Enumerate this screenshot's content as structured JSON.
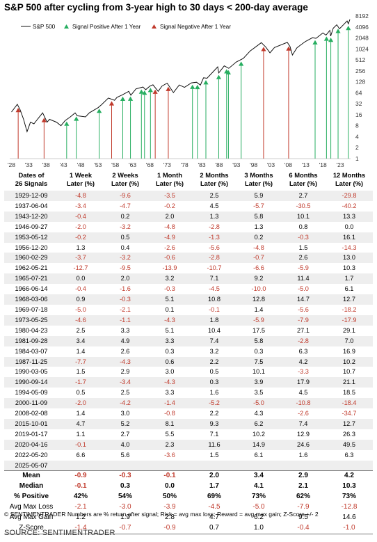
{
  "chart_data": {
    "type": "line",
    "title": "S&P 500 after cycling from 3-year high to 30 days < 200-day average",
    "x_tick_labels": [
      "'28",
      "'33",
      "'38",
      "'43",
      "'48",
      "'53",
      "'58",
      "'63",
      "'68",
      "'73",
      "'78",
      "'83",
      "'88",
      "'93",
      "'98",
      "'03",
      "'08",
      "'13",
      "'18",
      "'23"
    ],
    "x_range": [
      1927.5,
      2026
    ],
    "y_scale": "log2",
    "y_range": [
      1,
      8192
    ],
    "y_tick_labels": [
      "8192",
      "4096",
      "2048",
      "1024",
      "512",
      "256",
      "128",
      "64",
      "32",
      "16",
      "8",
      "4",
      "2",
      "1"
    ],
    "legend": [
      "S&P 500",
      "Signal Positive After 1 Year",
      "Signal Negative After 1 Year"
    ],
    "legend_position": "top-left",
    "colors": {
      "line": "#111111",
      "positive": "#27ae60",
      "negative": "#c0392b"
    },
    "series": [
      {
        "name": "S&P 500",
        "points": [
          [
            1928,
            19
          ],
          [
            1929.7,
            31
          ],
          [
            1930.5,
            22
          ],
          [
            1931.5,
            12
          ],
          [
            1932.5,
            5.5
          ],
          [
            1933.5,
            10
          ],
          [
            1934.5,
            9
          ],
          [
            1935.5,
            12
          ],
          [
            1937,
            18
          ],
          [
            1938.3,
            10
          ],
          [
            1939,
            12
          ],
          [
            1941,
            10
          ],
          [
            1942.3,
            8
          ],
          [
            1943.5,
            11
          ],
          [
            1945,
            14
          ],
          [
            1946.4,
            18
          ],
          [
            1947,
            15
          ],
          [
            1949.4,
            14
          ],
          [
            1950.5,
            18
          ],
          [
            1953,
            25
          ],
          [
            1954,
            30
          ],
          [
            1956,
            46
          ],
          [
            1957.8,
            40
          ],
          [
            1958.5,
            48
          ],
          [
            1960,
            56
          ],
          [
            1961.9,
            70
          ],
          [
            1962.5,
            55
          ],
          [
            1964,
            82
          ],
          [
            1966,
            92
          ],
          [
            1966.8,
            78
          ],
          [
            1968,
            98
          ],
          [
            1968.9,
            106
          ],
          [
            1970.4,
            70
          ],
          [
            1971.5,
            98
          ],
          [
            1973,
            118
          ],
          [
            1974.8,
            65
          ],
          [
            1976.5,
            105
          ],
          [
            1978,
            90
          ],
          [
            1980,
            120
          ],
          [
            1981.5,
            125
          ],
          [
            1982.6,
            104
          ],
          [
            1983.5,
            165
          ],
          [
            1984.5,
            160
          ],
          [
            1987.6,
            330
          ],
          [
            1987.9,
            225
          ],
          [
            1989.5,
            350
          ],
          [
            1990.8,
            300
          ],
          [
            1993,
            450
          ],
          [
            1995,
            560
          ],
          [
            1997,
            900
          ],
          [
            1998.5,
            1150
          ],
          [
            2000.2,
            1520
          ],
          [
            2001.5,
            1150
          ],
          [
            2002.7,
            800
          ],
          [
            2004,
            1120
          ],
          [
            2007.7,
            1550
          ],
          [
            2008.5,
            1200
          ],
          [
            2009.2,
            700
          ],
          [
            2010.5,
            1100
          ],
          [
            2011.5,
            1300
          ],
          [
            2013,
            1650
          ],
          [
            2015,
            2080
          ],
          [
            2016,
            2000
          ],
          [
            2018,
            2800
          ],
          [
            2018.9,
            2450
          ],
          [
            2020,
            3300
          ],
          [
            2020.25,
            2300
          ],
          [
            2021,
            3800
          ],
          [
            2022,
            4700
          ],
          [
            2022.8,
            3650
          ],
          [
            2024,
            4800
          ],
          [
            2025,
            6000
          ],
          [
            2025.35,
            5000
          ],
          [
            2025.8,
            6600
          ]
        ]
      }
    ],
    "signals": [
      {
        "x": 1929.94,
        "date": "1929-12-09",
        "result": "negative"
      },
      {
        "x": 1937.42,
        "date": "1937-06-04",
        "result": "negative"
      },
      {
        "x": 1943.95,
        "date": "1943-12-20",
        "result": "positive"
      },
      {
        "x": 1946.74,
        "date": "1946-09-27",
        "result": "positive"
      },
      {
        "x": 1953.36,
        "date": "1953-05-12",
        "result": "positive"
      },
      {
        "x": 1956.95,
        "date": "1956-12-20",
        "result": "negative"
      },
      {
        "x": 1960.16,
        "date": "1960-02-29",
        "result": "positive"
      },
      {
        "x": 1962.39,
        "date": "1962-05-21",
        "result": "positive"
      },
      {
        "x": 1965.55,
        "date": "1965-07-21",
        "result": "positive"
      },
      {
        "x": 1966.45,
        "date": "1966-06-14",
        "result": "positive"
      },
      {
        "x": 1968.17,
        "date": "1968-03-06",
        "result": "positive"
      },
      {
        "x": 1969.54,
        "date": "1969-07-18",
        "result": "negative"
      },
      {
        "x": 1973.32,
        "date": "1973-05-25",
        "result": "negative"
      },
      {
        "x": 1980.31,
        "date": "1980-04-23",
        "result": "positive"
      },
      {
        "x": 1981.74,
        "date": "1981-09-28",
        "result": "positive"
      },
      {
        "x": 1984.19,
        "date": "1984-03-07",
        "result": "positive"
      },
      {
        "x": 1987.9,
        "date": "1987-11-25",
        "result": "positive"
      },
      {
        "x": 1990.17,
        "date": "1990-03-05",
        "result": "positive"
      },
      {
        "x": 1990.7,
        "date": "1990-09-14",
        "result": "positive"
      },
      {
        "x": 1994.38,
        "date": "1994-05-09",
        "result": "positive"
      },
      {
        "x": 2000.86,
        "date": "2000-11-09",
        "result": "negative"
      },
      {
        "x": 2008.1,
        "date": "2008-02-08",
        "result": "negative"
      },
      {
        "x": 2015.75,
        "date": "2015-10-01",
        "result": "positive"
      },
      {
        "x": 2019.04,
        "date": "2019-01-17",
        "result": "positive"
      },
      {
        "x": 2020.29,
        "date": "2020-04-16",
        "result": "positive"
      },
      {
        "x": 2022.39,
        "date": "2022-05-20",
        "result": "positive"
      },
      {
        "x": 2025.35,
        "date": "2025-05-07",
        "result": "positive"
      }
    ]
  },
  "table": {
    "headers": [
      "Dates of\n26 Signals",
      "1 Week\nLater (%)",
      "2 Weeks\nLater (%)",
      "1 Month\nLater (%)",
      "2 Months\nLater (%)",
      "3 Months\nLater (%)",
      "6 Months\nLater (%)",
      "12 Months\nLater (%)"
    ],
    "rows": [
      [
        "1929-12-09",
        "-4.8",
        "-9.6",
        "-3.5",
        "2.5",
        "5.9",
        "2.7",
        "-29.8"
      ],
      [
        "1937-06-04",
        "-3.4",
        "-4.7",
        "-0.2",
        "4.5",
        "-5.7",
        "-30.5",
        "-40.2"
      ],
      [
        "1943-12-20",
        "-0.4",
        "0.2",
        "2.0",
        "1.3",
        "5.8",
        "10.1",
        "13.3"
      ],
      [
        "1946-09-27",
        "-2.0",
        "-3.2",
        "-4.8",
        "-2.8",
        "1.3",
        "0.8",
        "0.0"
      ],
      [
        "1953-05-12",
        "-0.2",
        "0.5",
        "-4.9",
        "-1.3",
        "0.2",
        "-0.3",
        "16.1"
      ],
      [
        "1956-12-20",
        "1.3",
        "0.4",
        "-2.6",
        "-5.6",
        "-4.8",
        "1.5",
        "-14.3"
      ],
      [
        "1960-02-29",
        "-3.7",
        "-3.2",
        "-0.6",
        "-2.8",
        "-0.7",
        "2.6",
        "13.0"
      ],
      [
        "1962-05-21",
        "-12.7",
        "-9.5",
        "-13.9",
        "-10.7",
        "-6.6",
        "-5.9",
        "10.3"
      ],
      [
        "1965-07-21",
        "0.0",
        "2.0",
        "3.2",
        "7.1",
        "9.2",
        "11.4",
        "1.7"
      ],
      [
        "1966-06-14",
        "-0.4",
        "-1.6",
        "-0.3",
        "-4.5",
        "-10.0",
        "-5.0",
        "6.1"
      ],
      [
        "1968-03-06",
        "0.9",
        "-0.3",
        "5.1",
        "10.8",
        "12.8",
        "14.7",
        "12.7"
      ],
      [
        "1969-07-18",
        "-5.0",
        "-2.1",
        "0.1",
        "-0.1",
        "1.4",
        "-5.6",
        "-18.2"
      ],
      [
        "1973-05-25",
        "-4.6",
        "-1.1",
        "-4.3",
        "1.8",
        "-5.9",
        "-7.9",
        "-17.9"
      ],
      [
        "1980-04-23",
        "2.5",
        "3.3",
        "5.1",
        "10.4",
        "17.5",
        "27.1",
        "29.1"
      ],
      [
        "1981-09-28",
        "3.4",
        "4.9",
        "3.3",
        "7.4",
        "5.8",
        "-2.8",
        "7.0"
      ],
      [
        "1984-03-07",
        "1.4",
        "2.6",
        "0.3",
        "3.2",
        "0.3",
        "6.3",
        "16.9"
      ],
      [
        "1987-11-25",
        "-7.7",
        "-4.3",
        "0.6",
        "2.2",
        "7.5",
        "4.2",
        "10.2"
      ],
      [
        "1990-03-05",
        "1.5",
        "2.9",
        "3.0",
        "0.5",
        "10.1",
        "-3.3",
        "10.7"
      ],
      [
        "1990-09-14",
        "-1.7",
        "-3.4",
        "-4.3",
        "0.3",
        "3.9",
        "17.9",
        "21.1"
      ],
      [
        "1994-05-09",
        "0.5",
        "2.5",
        "3.3",
        "1.6",
        "3.5",
        "4.5",
        "18.5"
      ],
      [
        "2000-11-09",
        "-2.0",
        "-4.2",
        "-1.4",
        "-5.2",
        "-5.0",
        "-10.8",
        "-18.4"
      ],
      [
        "2008-02-08",
        "1.4",
        "3.0",
        "-0.8",
        "2.2",
        "4.3",
        "-2.6",
        "-34.7"
      ],
      [
        "2015-10-01",
        "4.7",
        "5.2",
        "8.1",
        "9.3",
        "6.2",
        "7.4",
        "12.7"
      ],
      [
        "2019-01-17",
        "1.1",
        "2.7",
        "5.5",
        "7.1",
        "10.2",
        "12.9",
        "26.3"
      ],
      [
        "2020-04-16",
        "-0.1",
        "4.0",
        "2.3",
        "11.6",
        "14.9",
        "24.6",
        "49.5"
      ],
      [
        "2022-05-20",
        "6.6",
        "5.6",
        "-3.6",
        "1.5",
        "6.1",
        "1.6",
        "6.3"
      ],
      [
        "2025-05-07",
        "",
        "",
        "",
        "",
        "",
        "",
        ""
      ]
    ],
    "summary": [
      {
        "label": "Mean",
        "values": [
          "-0.9",
          "-0.3",
          "-0.1",
          "2.0",
          "3.4",
          "2.9",
          "4.2"
        ]
      },
      {
        "label": "Median",
        "values": [
          "-0.1",
          "0.3",
          "0.0",
          "1.7",
          "4.1",
          "2.1",
          "10.3"
        ]
      },
      {
        "label": "% Positive",
        "values": [
          "42%",
          "54%",
          "50%",
          "69%",
          "73%",
          "62%",
          "73%"
        ]
      },
      {
        "label": "Avg Max Loss",
        "values": [
          "-2.1",
          "-3.0",
          "-3.9",
          "-4.5",
          "-5.0",
          "-7.9",
          "-12.8"
        ]
      },
      {
        "label": "Avg Max Gain",
        "values": [
          "1.2",
          "1.9",
          "2.8",
          "4.7",
          "6.2",
          "9.5",
          "14.6"
        ]
      },
      {
        "label": "Z-Score",
        "values": [
          "-1.4",
          "-0.7",
          "-0.9",
          "0.7",
          "1.0",
          "-0.4",
          "-1.0"
        ]
      }
    ]
  },
  "footnote": "© SENTIMENTRADER  Numbers are % return after signal; Risk = avg max loss; Reward = avg max gain; Z-Score +/- 2",
  "source": "SOURCE: SENTIMENTRADER"
}
